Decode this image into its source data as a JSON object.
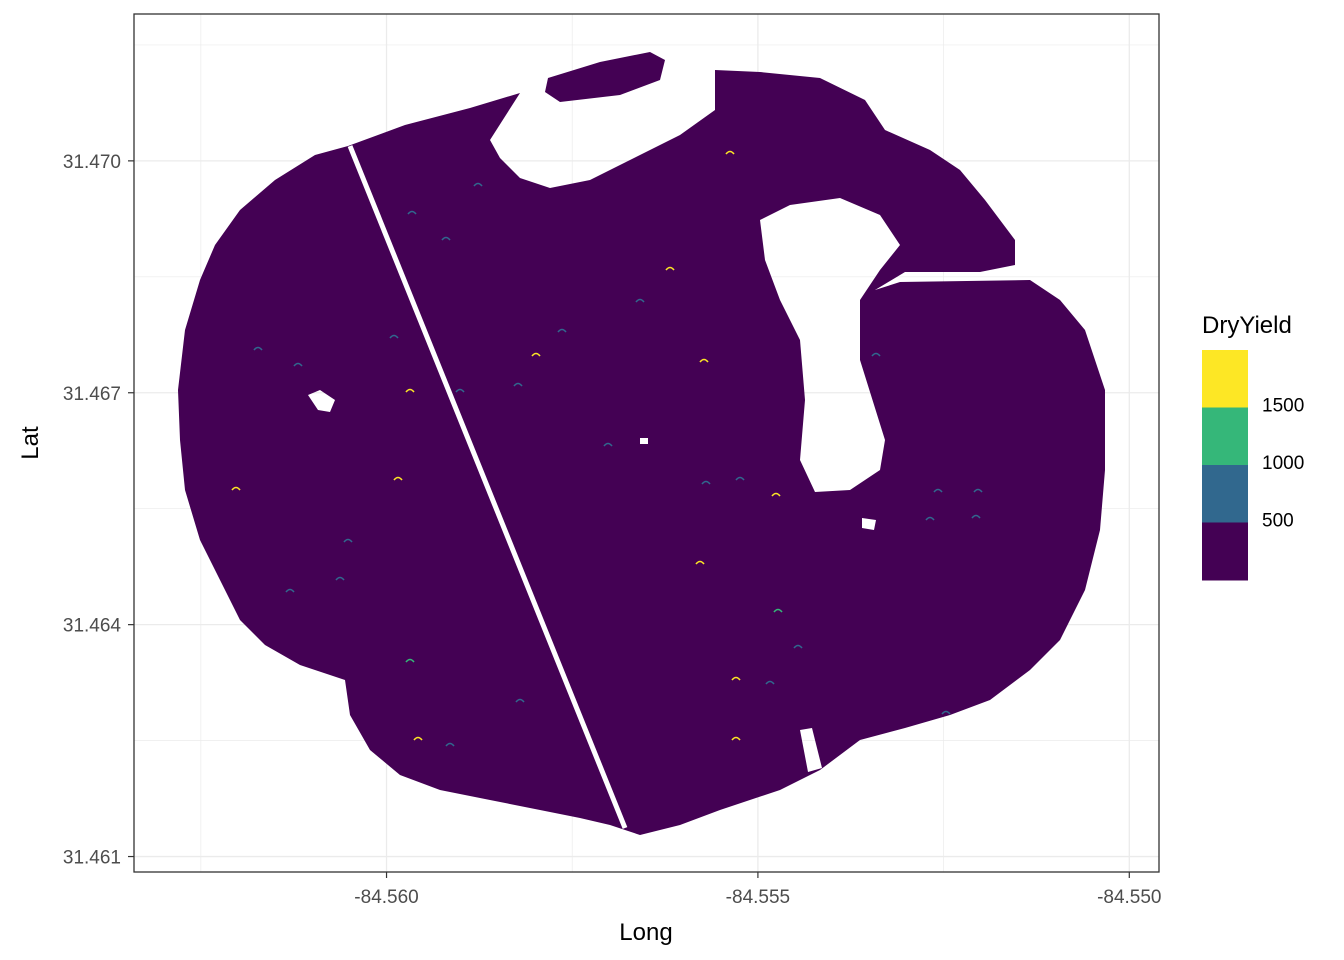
{
  "chart_data": {
    "type": "scatter",
    "title": "",
    "xlabel": "Long",
    "ylabel": "Lat",
    "xlim": [
      -84.5634,
      -84.5496
    ],
    "ylim": [
      31.4608,
      31.4719
    ],
    "x_ticks": [
      -84.56,
      -84.555,
      -84.55
    ],
    "x_tick_labels": [
      "-84.560",
      "-84.555",
      "-84.550"
    ],
    "y_ticks": [
      31.461,
      31.464,
      31.467,
      31.47
    ],
    "y_tick_labels": [
      "31.461",
      "31.464",
      "31.467",
      "31.470"
    ],
    "grid": true,
    "background": "white",
    "field_color": "#440154",
    "legend": {
      "title": "DryYield",
      "position": "right",
      "bins": [
        {
          "color": "#fde725"
        },
        {
          "color": "#35b779"
        },
        {
          "color": "#31688e"
        },
        {
          "color": "#440154"
        }
      ],
      "labels": [
        "1500",
        "1000",
        "500"
      ]
    },
    "series": [
      {
        "values_description_free": true,
        "field_outline": [
          [
            -84.5604,
            31.4712
          ],
          [
            -84.5588,
            31.4714
          ],
          [
            -84.5572,
            31.4716
          ],
          [
            -84.5566,
            31.471
          ],
          [
            -84.5558,
            31.4711
          ],
          [
            -84.5556,
            31.4716
          ],
          [
            -84.5545,
            31.4714
          ],
          [
            -84.5535,
            31.4711
          ],
          [
            -84.5527,
            31.4704
          ],
          [
            -84.5525,
            31.469
          ],
          [
            -84.5514,
            31.4688
          ],
          [
            -84.5507,
            31.4681
          ],
          [
            -84.5503,
            31.4671
          ],
          [
            -84.5502,
            31.466
          ],
          [
            -84.5504,
            31.4649
          ],
          [
            -84.5507,
            31.464
          ],
          [
            -84.5514,
            31.4632
          ],
          [
            -84.5525,
            31.4627
          ],
          [
            -84.5538,
            31.4622
          ],
          [
            -84.555,
            31.4617
          ],
          [
            -84.5565,
            31.4613
          ],
          [
            -84.5572,
            31.4615
          ],
          [
            -84.5585,
            31.4617
          ],
          [
            -84.5601,
            31.4619
          ],
          [
            -84.5608,
            31.4624
          ],
          [
            -84.5613,
            31.4633
          ],
          [
            -84.562,
            31.4642
          ],
          [
            -84.5625,
            31.4654
          ],
          [
            -84.5627,
            31.4667
          ],
          [
            -84.5624,
            31.4682
          ],
          [
            -84.5618,
            31.4695
          ],
          [
            -84.5611,
            31.4705
          ]
        ]
      }
    ]
  }
}
